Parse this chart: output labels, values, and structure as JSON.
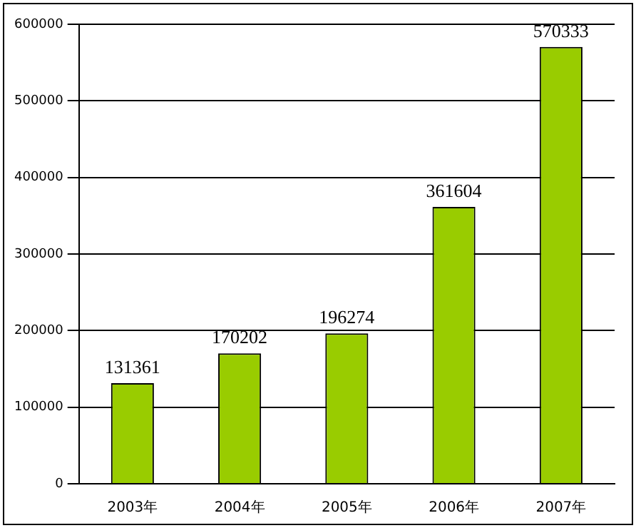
{
  "chart_data": {
    "type": "bar",
    "categories": [
      "2003年",
      "2004年",
      "2005年",
      "2006年",
      "2007年"
    ],
    "values": [
      131361,
      170202,
      196274,
      361604,
      570333
    ],
    "color": "#99cc00",
    "ylim": [
      0,
      600000
    ],
    "yticks": [
      0,
      100000,
      200000,
      300000,
      400000,
      500000,
      600000
    ],
    "grid": "y",
    "data_labels": true,
    "legend": false
  }
}
